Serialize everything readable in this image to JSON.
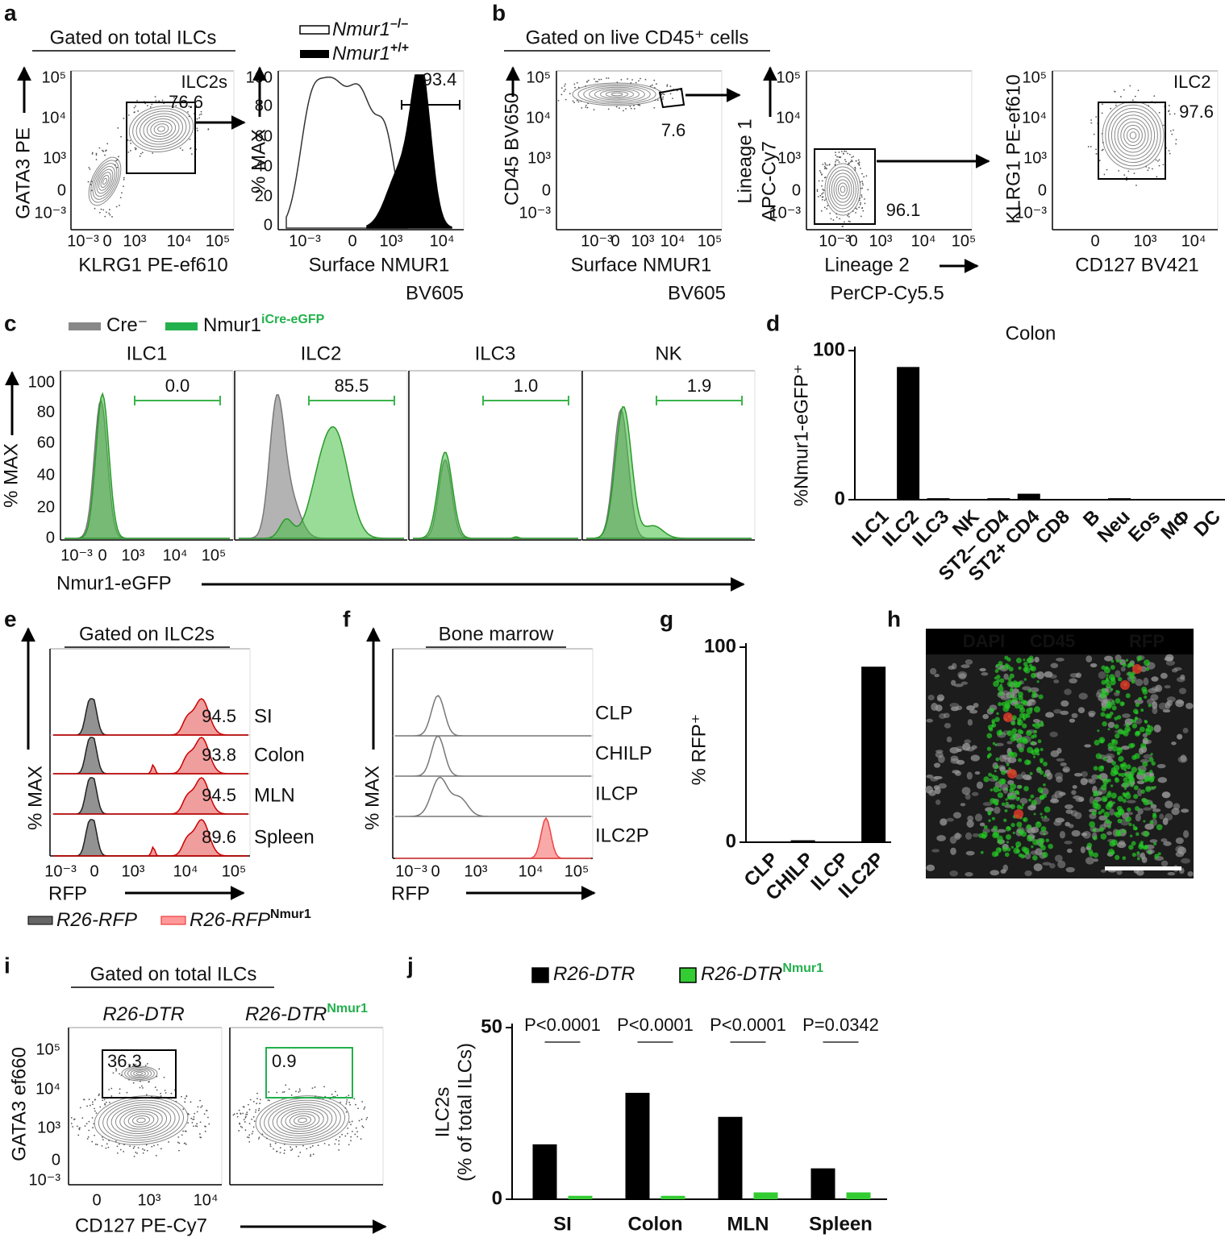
{
  "panels": {
    "a": {
      "letter": "a",
      "gate_title": "Gated on total ILCs",
      "contour": {
        "ylabel": "GATA3 PE",
        "xlabel": "KLRG1 PE-ef610",
        "yticks": [
          "10⁵",
          "10⁴",
          "10³",
          "0",
          "10⁻³"
        ],
        "xticks": [
          "10⁻³",
          "0",
          "10³",
          "10⁴",
          "10⁵"
        ],
        "gate_name": "ILC2s",
        "gate_value": "76.6"
      },
      "histogram": {
        "legend": [
          {
            "name": "Nmur1",
            "sup": "–/–"
          },
          {
            "name": "Nmur1",
            "sup": "+/+"
          }
        ],
        "ylabel": "% MAX",
        "yticks": [
          "100",
          "80",
          "60",
          "40",
          "20",
          "0"
        ],
        "xticks": [
          "10⁻³",
          "0",
          "10³",
          "10⁴"
        ],
        "xlabel": [
          "Surface NMUR1",
          "BV605"
        ],
        "gate_value": "93.4"
      }
    },
    "b": {
      "letter": "b",
      "gate_title": "Gated on live CD45⁺ cells",
      "plots": [
        {
          "ylabel": [
            "CD45 BV650"
          ],
          "xlabel": [
            "Surface NMUR1",
            "BV605"
          ],
          "yticks": [
            "10⁵",
            "10⁴",
            "10³",
            "0",
            "10⁻³"
          ],
          "xticks": [
            "10⁻³",
            "0",
            "10³",
            "10⁴",
            "10⁵"
          ],
          "gate_value": "7.6"
        },
        {
          "ylabel": [
            "Lineage 1",
            "APC-Cy7"
          ],
          "xlabel": [
            "Lineage 2",
            "PerCP-Cy5.5"
          ],
          "yticks": [
            "10⁵",
            "10⁴",
            "10³",
            "0",
            "10⁻³"
          ],
          "xticks": [
            "10⁻³",
            "0",
            "10³",
            "10⁴",
            "10⁵"
          ],
          "gate_value": "96.1"
        },
        {
          "ylabel": [
            "KLRG1 PE-ef610"
          ],
          "xlabel": [
            "CD127 BV421"
          ],
          "yticks": [
            "10⁵",
            "10⁴",
            "10³",
            "0",
            "10⁻³"
          ],
          "xticks": [
            "0",
            "10³",
            "10⁴"
          ],
          "gate_name": "ILC2",
          "gate_value": "97.6"
        }
      ]
    },
    "c": {
      "letter": "c",
      "legend": [
        {
          "name": "Cre⁻"
        },
        {
          "name": "Nmur1",
          "sup": "iCre-eGFP"
        }
      ],
      "ylabel": "% MAX",
      "yticks": [
        "100",
        "80",
        "60",
        "40",
        "20",
        "0"
      ],
      "xticks": [
        "10⁻³",
        "0",
        "10³",
        "10⁴",
        "10⁵"
      ],
      "xlabel": "Nmur1-eGFP",
      "plots": [
        {
          "title": "ILC1",
          "gate_value": "0.0"
        },
        {
          "title": "ILC2",
          "gate_value": "85.5"
        },
        {
          "title": "ILC3",
          "gate_value": "1.0"
        },
        {
          "title": "NK",
          "gate_value": "1.9"
        }
      ]
    },
    "d": {
      "letter": "d"
    },
    "e": {
      "letter": "e",
      "gate_title": "Gated on ILC2s",
      "ylabel": "% MAX",
      "xlabel": "RFP",
      "xticks": [
        "10⁻³",
        "0",
        "10³",
        "10⁴",
        "10⁵"
      ],
      "rows": [
        {
          "value": "94.5",
          "tissue": "SI"
        },
        {
          "value": "93.8",
          "tissue": "Colon"
        },
        {
          "value": "94.5",
          "tissue": "MLN"
        },
        {
          "value": "89.6",
          "tissue": "Spleen"
        }
      ],
      "legend": [
        {
          "name": "R26-RFP"
        },
        {
          "name": "R26-RFP",
          "sup": "Nmur1"
        }
      ]
    },
    "f": {
      "letter": "f",
      "title": "Bone marrow",
      "ylabel": "% MAX",
      "xlabel": "RFP",
      "xticks": [
        "10⁻³",
        "0",
        "10³",
        "10⁴",
        "10⁵"
      ],
      "rows": [
        "CLP",
        "CHILP",
        "ILCP",
        "ILC2P"
      ]
    },
    "g": {
      "letter": "g"
    },
    "h": {
      "letter": "h",
      "channels": [
        "DAPI",
        "CD45",
        "RFP"
      ]
    },
    "i": {
      "letter": "i",
      "gate_title": "Gated on total ILCs",
      "titles": [
        {
          "name": "R26-DTR"
        },
        {
          "name": "R26-DTR",
          "sup": "Nmur1"
        }
      ],
      "ylabel": "GATA3 ef660",
      "yticks": [
        "10⁵",
        "10⁴",
        "10³",
        "0",
        "10⁻³"
      ],
      "xticks": [
        "0",
        "10³",
        "10⁴"
      ],
      "xlabel": "CD127 PE-Cy7",
      "gate_values": [
        "36.3",
        "0.9"
      ]
    },
    "j": {
      "letter": "j"
    }
  },
  "chart_data": [
    {
      "type": "bar",
      "title": "Colon",
      "ylabel": "%Nmur1-eGFP⁺",
      "categories": [
        "ILC1",
        "ILC2",
        "ILC3",
        "NK",
        "ST2– CD4",
        "ST2+ CD4",
        "CD8",
        "B",
        "Neu",
        "Eos",
        "MΦ",
        "DC"
      ],
      "values": [
        0,
        89,
        1,
        0,
        1,
        4,
        0,
        0,
        1,
        0,
        0,
        0
      ],
      "color": "#000000",
      "ylim": [
        0,
        100
      ],
      "yticks": [
        0,
        100
      ]
    },
    {
      "type": "bar",
      "ylabel": "% RFP⁺",
      "categories": [
        "CLP",
        "CHILP",
        "ILCP",
        "ILC2P"
      ],
      "values": [
        0,
        1,
        0,
        90
      ],
      "color": "#000000",
      "ylim": [
        0,
        100
      ],
      "yticks": [
        0,
        100
      ]
    },
    {
      "type": "bar",
      "ylabel": [
        "ILC2s",
        "(% of total ILCs)"
      ],
      "categories": [
        "SI",
        "Colon",
        "MLN",
        "Spleen"
      ],
      "series": [
        {
          "name": "R26-DTR",
          "color": "#000000",
          "values": [
            16,
            31,
            24,
            9
          ]
        },
        {
          "name": "R26-DTR",
          "sup": "Nmur1",
          "color": "#33cc33",
          "values": [
            1,
            1,
            2,
            2
          ]
        }
      ],
      "annotations": [
        "P<0.0001",
        "P<0.0001",
        "P<0.0001",
        "P=0.0342"
      ],
      "ylim": [
        0,
        50
      ],
      "yticks": [
        0,
        50
      ]
    }
  ]
}
